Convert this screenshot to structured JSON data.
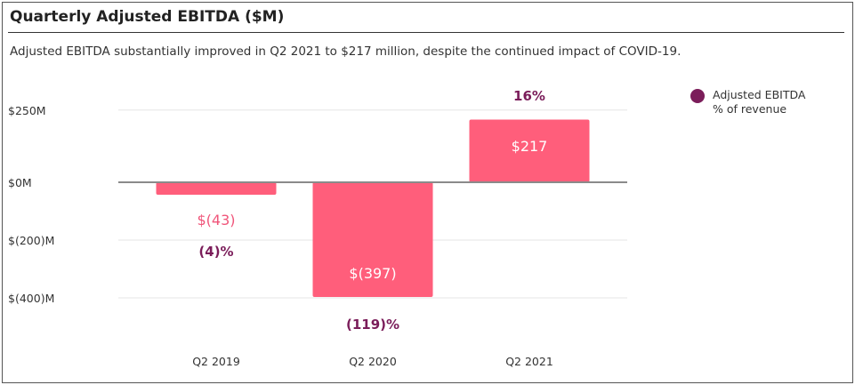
{
  "title": "Quarterly Adjusted EBITDA ($M)",
  "subtitle": "Adjusted EBITDA substantially improved in Q2 2021 to $217 million, despite the continued impact of COVID-19.",
  "legend": {
    "line1": "Adjusted EBITDA",
    "line2": "% of revenue",
    "color": "#7b1d5a"
  },
  "colors": {
    "bar": "#ff5e7b",
    "pct_text": "#7b1d5a",
    "neg_value_text": "#f0557a",
    "pos_value_text": "#ffffff",
    "zero_line": "#8a8a8a",
    "grid": "#e6e6e6"
  },
  "chart_data": {
    "type": "bar",
    "categories": [
      "Q2 2019",
      "Q2 2020",
      "Q2 2021"
    ],
    "values": [
      -43,
      -397,
      217
    ],
    "value_labels": [
      "$(43)",
      "$(397)",
      "$217"
    ],
    "percent_labels": [
      "(4)%",
      "(119)%",
      "16%"
    ],
    "ylim": [
      -400,
      250
    ],
    "yticks": [
      250,
      0,
      -200,
      -400
    ],
    "ytick_labels": [
      "$250M",
      "$0M",
      "$(200)M",
      "$(400)M"
    ],
    "grid": true,
    "legend_position": "top-right"
  }
}
